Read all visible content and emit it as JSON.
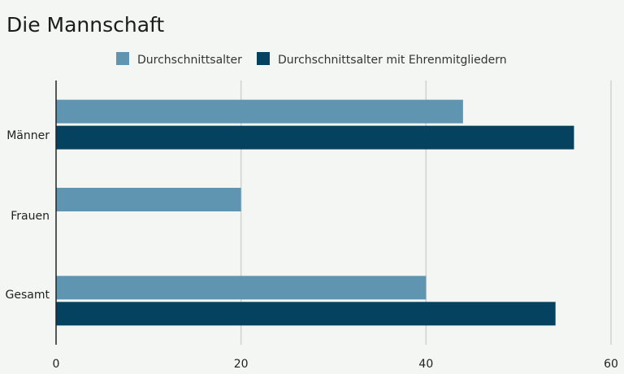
{
  "chart_data": {
    "type": "bar",
    "orientation": "horizontal",
    "title": "Die Mannschaft",
    "categories": [
      "Männer",
      "Frauen",
      "Gesamt"
    ],
    "series": [
      {
        "name": "Durchschnittsalter",
        "color": "#5f95b1",
        "values": [
          44,
          20,
          40
        ]
      },
      {
        "name": "Durchschnittsalter mit Ehrenmitgliedern",
        "color": "#05425f",
        "values": [
          56,
          null,
          54
        ]
      }
    ],
    "xlim": [
      0,
      60
    ],
    "xticks": [
      0,
      20,
      40,
      60
    ],
    "grid": true,
    "legend_position": "top"
  }
}
